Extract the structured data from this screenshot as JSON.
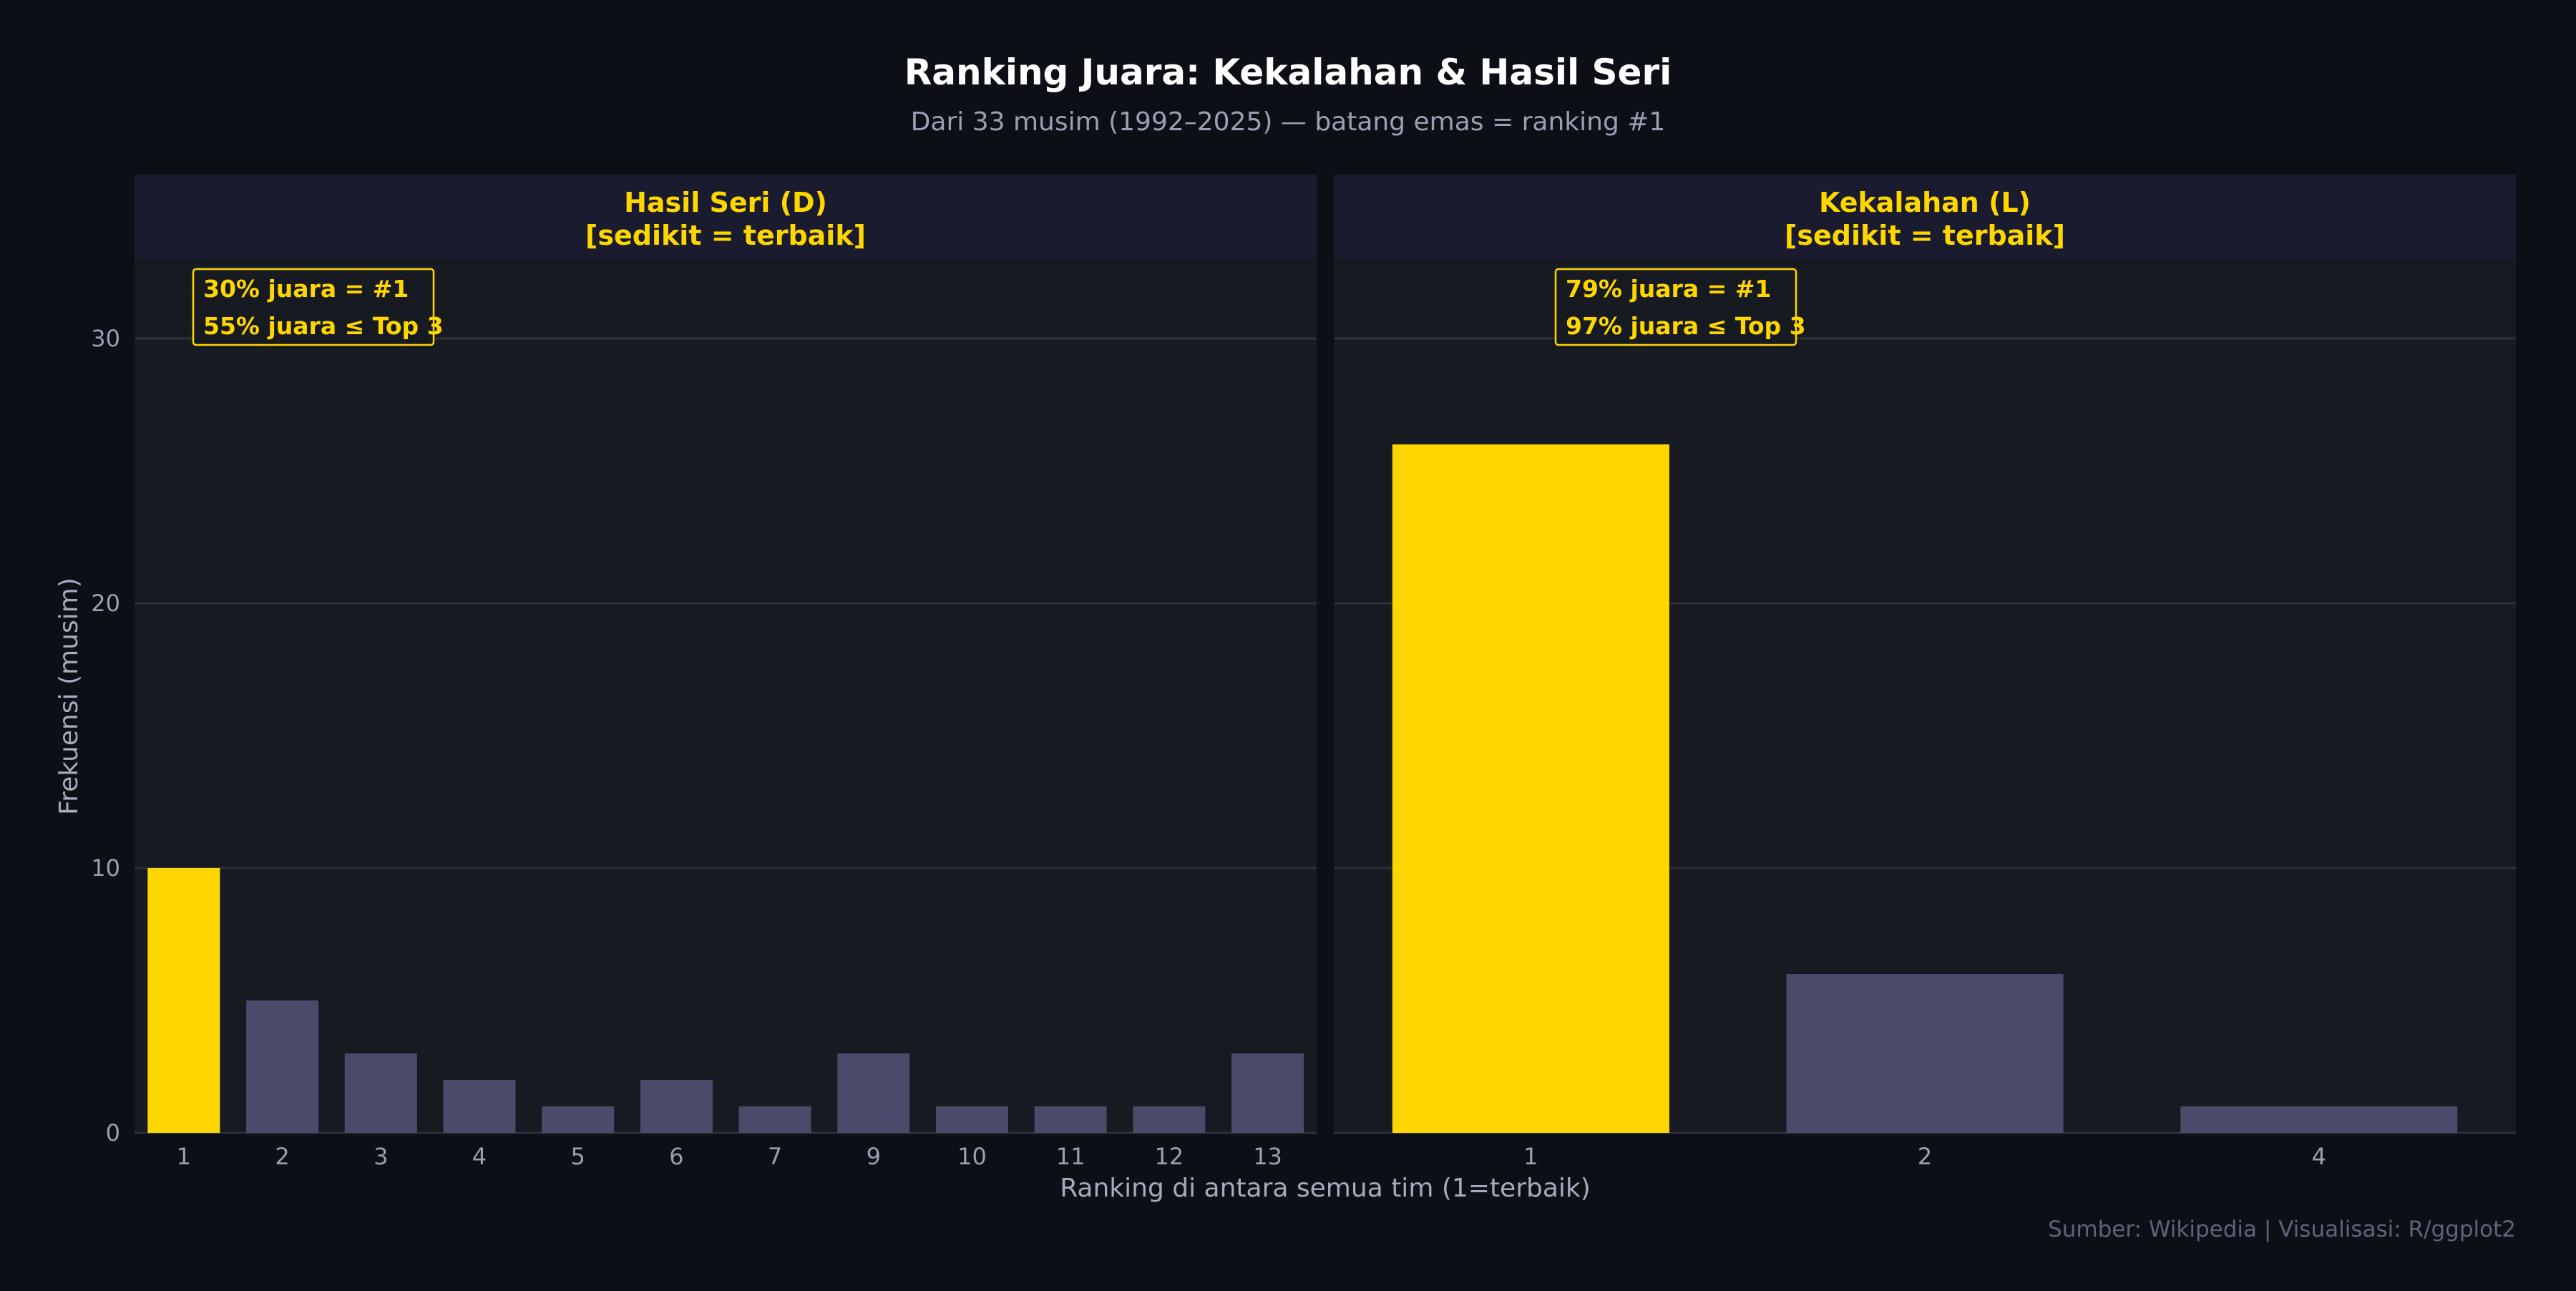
{
  "header": {
    "title": "Ranking Juara: Kekalahan & Hasil Seri",
    "subtitle": "Dari 33 musim (1992–2025) — batang emas = ranking #1"
  },
  "axes": {
    "xlabel": "Ranking di antara semua tim (1=terbaik)",
    "ylabel": "Frekuensi (musim)"
  },
  "caption": "Sumber: Wikipedia | Visualisasi: R/ggplot2",
  "colors": {
    "highlight": "#FFD700",
    "bar": "#4a4a6a",
    "background": "#0d0f17",
    "panel": "#171a21",
    "strip": "#1a1b2e"
  },
  "chart_data": [
    {
      "type": "bar",
      "panel_title": [
        "Hasil Seri (D)",
        "[sedikit = terbaik]"
      ],
      "categories": [
        "1",
        "2",
        "3",
        "4",
        "5",
        "6",
        "7",
        "9",
        "10",
        "11",
        "12",
        "13"
      ],
      "values": [
        10,
        5,
        3,
        2,
        1,
        2,
        1,
        3,
        1,
        1,
        1,
        3
      ],
      "highlight_category": "1",
      "annotation": [
        "30% juara = #1",
        "55% juara ≤ Top 3"
      ],
      "ylim": [
        0,
        33
      ],
      "yticks": [
        0,
        10,
        20,
        30
      ],
      "grid": true
    },
    {
      "type": "bar",
      "panel_title": [
        "Kekalahan (L)",
        "[sedikit = terbaik]"
      ],
      "categories": [
        "1",
        "2",
        "4"
      ],
      "values": [
        26,
        6,
        1
      ],
      "highlight_category": "1",
      "annotation": [
        "79% juara = #1",
        "97% juara ≤ Top 3"
      ],
      "ylim": [
        0,
        33
      ],
      "yticks": [
        0,
        10,
        20,
        30
      ],
      "grid": true
    }
  ]
}
